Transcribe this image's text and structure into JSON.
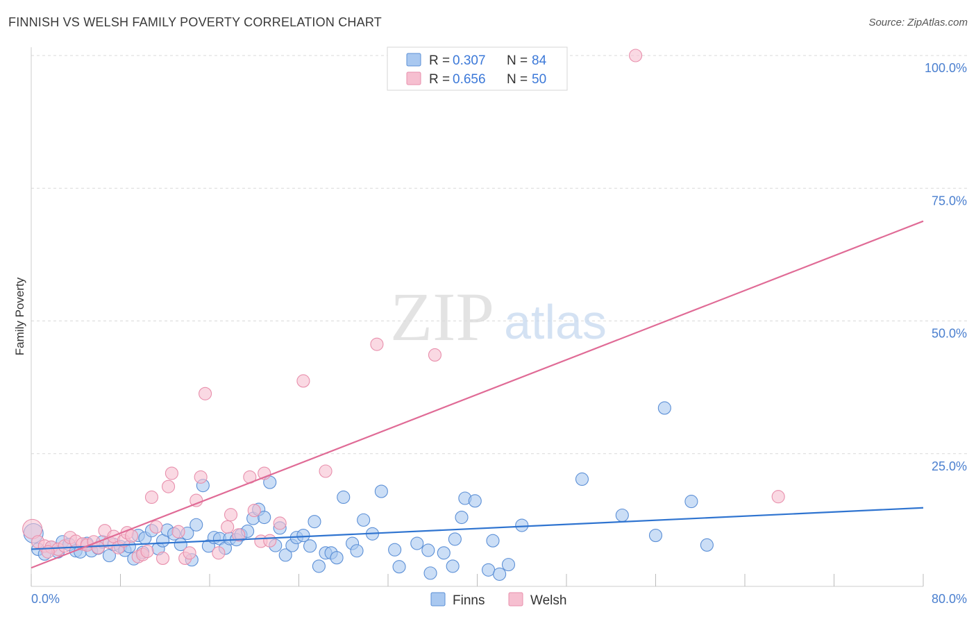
{
  "title": "FINNISH VS WELSH FAMILY POVERTY CORRELATION CHART",
  "source": "Source: ZipAtlas.com",
  "watermark": {
    "zip": "ZIP",
    "atlas": "atlas"
  },
  "colors": {
    "finns_fill": "#a9c8f0",
    "finns_stroke": "#5b8fd6",
    "finns_line": "#2f74d0",
    "welsh_fill": "#f6bfd0",
    "welsh_stroke": "#e88fac",
    "welsh_line": "#e06b96",
    "grid": "#d9d9d9",
    "tick_text": "#4a7fcf"
  },
  "legend": {
    "rows": [
      {
        "r_label": "R = ",
        "r_value": "0.307",
        "n_label": "N = ",
        "n_value": "84"
      },
      {
        "r_label": "R = ",
        "r_value": "0.656",
        "n_label": "N = ",
        "n_value": "50"
      }
    ]
  },
  "bottom_legend": [
    "Finns",
    "Welsh"
  ],
  "chart_data": {
    "type": "scatter",
    "title": "FINNISH VS WELSH FAMILY POVERTY CORRELATION CHART",
    "xlabel": "",
    "ylabel": "Family Poverty",
    "xlim": [
      0,
      80
    ],
    "ylim": [
      0,
      100
    ],
    "x_tick_labels": [
      "0.0%",
      "80.0%"
    ],
    "y_tick_labels": [
      "100.0%",
      "75.0%",
      "50.0%",
      "25.0%"
    ],
    "y_ticks": [
      100,
      75,
      50,
      25
    ],
    "grid": true,
    "legend_position": "top-center",
    "series": [
      {
        "name": "Finns",
        "R": 0.307,
        "N": 84,
        "trend": {
          "x": [
            0,
            80
          ],
          "y": [
            7.0,
            14.8
          ]
        },
        "points": [
          [
            0.2,
            10.0
          ],
          [
            0.6,
            7.0
          ],
          [
            1.2,
            6.1
          ],
          [
            1.8,
            7.4
          ],
          [
            2.4,
            6.5
          ],
          [
            2.8,
            8.4
          ],
          [
            3.4,
            7.9
          ],
          [
            4.0,
            6.7
          ],
          [
            4.4,
            6.5
          ],
          [
            5.0,
            8.1
          ],
          [
            5.4,
            6.7
          ],
          [
            6.0,
            7.2
          ],
          [
            6.4,
            8.4
          ],
          [
            7.0,
            5.8
          ],
          [
            7.4,
            7.9
          ],
          [
            8.0,
            7.5
          ],
          [
            8.4,
            6.8
          ],
          [
            8.8,
            7.5
          ],
          [
            9.2,
            5.2
          ],
          [
            9.6,
            9.6
          ],
          [
            10.2,
            9.1
          ],
          [
            10.8,
            10.5
          ],
          [
            11.4,
            7.1
          ],
          [
            11.8,
            8.6
          ],
          [
            12.2,
            10.6
          ],
          [
            12.8,
            9.9
          ],
          [
            13.4,
            7.9
          ],
          [
            14.0,
            10.0
          ],
          [
            14.4,
            5.0
          ],
          [
            14.8,
            11.6
          ],
          [
            15.4,
            19.0
          ],
          [
            15.9,
            7.6
          ],
          [
            16.4,
            9.2
          ],
          [
            16.9,
            9.0
          ],
          [
            17.4,
            7.2
          ],
          [
            17.8,
            9.0
          ],
          [
            18.4,
            8.8
          ],
          [
            18.8,
            9.7
          ],
          [
            19.4,
            10.4
          ],
          [
            19.9,
            12.8
          ],
          [
            20.4,
            14.5
          ],
          [
            20.9,
            13.0
          ],
          [
            21.4,
            19.6
          ],
          [
            21.9,
            7.7
          ],
          [
            22.3,
            11.0
          ],
          [
            22.8,
            5.9
          ],
          [
            23.4,
            7.7
          ],
          [
            23.8,
            9.2
          ],
          [
            24.4,
            9.6
          ],
          [
            25.0,
            7.6
          ],
          [
            25.4,
            12.2
          ],
          [
            25.8,
            3.8
          ],
          [
            26.4,
            6.3
          ],
          [
            26.9,
            6.3
          ],
          [
            27.4,
            5.4
          ],
          [
            28.0,
            16.8
          ],
          [
            28.8,
            8.1
          ],
          [
            29.2,
            6.7
          ],
          [
            29.8,
            12.5
          ],
          [
            30.6,
            9.9
          ],
          [
            31.4,
            17.9
          ],
          [
            32.6,
            6.9
          ],
          [
            33.0,
            3.7
          ],
          [
            34.6,
            8.1
          ],
          [
            35.6,
            6.8
          ],
          [
            35.8,
            2.5
          ],
          [
            37.0,
            6.3
          ],
          [
            37.8,
            3.8
          ],
          [
            38.0,
            8.9
          ],
          [
            38.6,
            13.0
          ],
          [
            38.9,
            16.6
          ],
          [
            39.8,
            16.1
          ],
          [
            41.0,
            3.1
          ],
          [
            41.4,
            8.6
          ],
          [
            42.0,
            2.3
          ],
          [
            42.8,
            4.1
          ],
          [
            44.0,
            11.5
          ],
          [
            49.4,
            20.2
          ],
          [
            53.0,
            13.4
          ],
          [
            56.0,
            9.6
          ],
          [
            56.8,
            33.6
          ],
          [
            59.2,
            16.0
          ],
          [
            60.6,
            7.8
          ],
          [
            10.0,
            6.4
          ]
        ]
      },
      {
        "name": "Welsh",
        "R": 0.656,
        "N": 50,
        "trend": {
          "x": [
            0,
            80
          ],
          "y": [
            3.5,
            68.8
          ]
        },
        "points": [
          [
            0.1,
            10.8
          ],
          [
            0.6,
            8.4
          ],
          [
            1.2,
            7.6
          ],
          [
            1.8,
            7.4
          ],
          [
            2.4,
            7.0
          ],
          [
            3.0,
            7.6
          ],
          [
            3.5,
            9.2
          ],
          [
            4.0,
            8.5
          ],
          [
            4.6,
            8.0
          ],
          [
            5.0,
            7.8
          ],
          [
            5.6,
            8.4
          ],
          [
            6.0,
            7.3
          ],
          [
            6.6,
            10.5
          ],
          [
            7.0,
            8.3
          ],
          [
            7.4,
            9.4
          ],
          [
            7.8,
            7.3
          ],
          [
            8.3,
            8.6
          ],
          [
            8.6,
            10.1
          ],
          [
            9.0,
            9.5
          ],
          [
            9.6,
            5.6
          ],
          [
            10.0,
            6.0
          ],
          [
            10.4,
            6.6
          ],
          [
            10.8,
            16.8
          ],
          [
            11.2,
            11.2
          ],
          [
            11.8,
            5.3
          ],
          [
            12.3,
            18.8
          ],
          [
            12.6,
            21.3
          ],
          [
            13.2,
            10.3
          ],
          [
            13.8,
            5.3
          ],
          [
            14.2,
            6.3
          ],
          [
            14.8,
            16.2
          ],
          [
            15.2,
            20.6
          ],
          [
            15.6,
            36.3
          ],
          [
            16.8,
            6.3
          ],
          [
            17.6,
            11.2
          ],
          [
            17.9,
            13.5
          ],
          [
            18.6,
            9.7
          ],
          [
            19.6,
            20.6
          ],
          [
            20.0,
            14.3
          ],
          [
            20.6,
            8.5
          ],
          [
            20.9,
            21.3
          ],
          [
            21.4,
            8.6
          ],
          [
            22.3,
            11.9
          ],
          [
            24.4,
            38.7
          ],
          [
            26.4,
            21.7
          ],
          [
            31.0,
            45.6
          ],
          [
            36.2,
            43.6
          ],
          [
            54.2,
            100.0
          ],
          [
            67.0,
            16.9
          ],
          [
            1.5,
            6.5
          ]
        ]
      }
    ]
  }
}
